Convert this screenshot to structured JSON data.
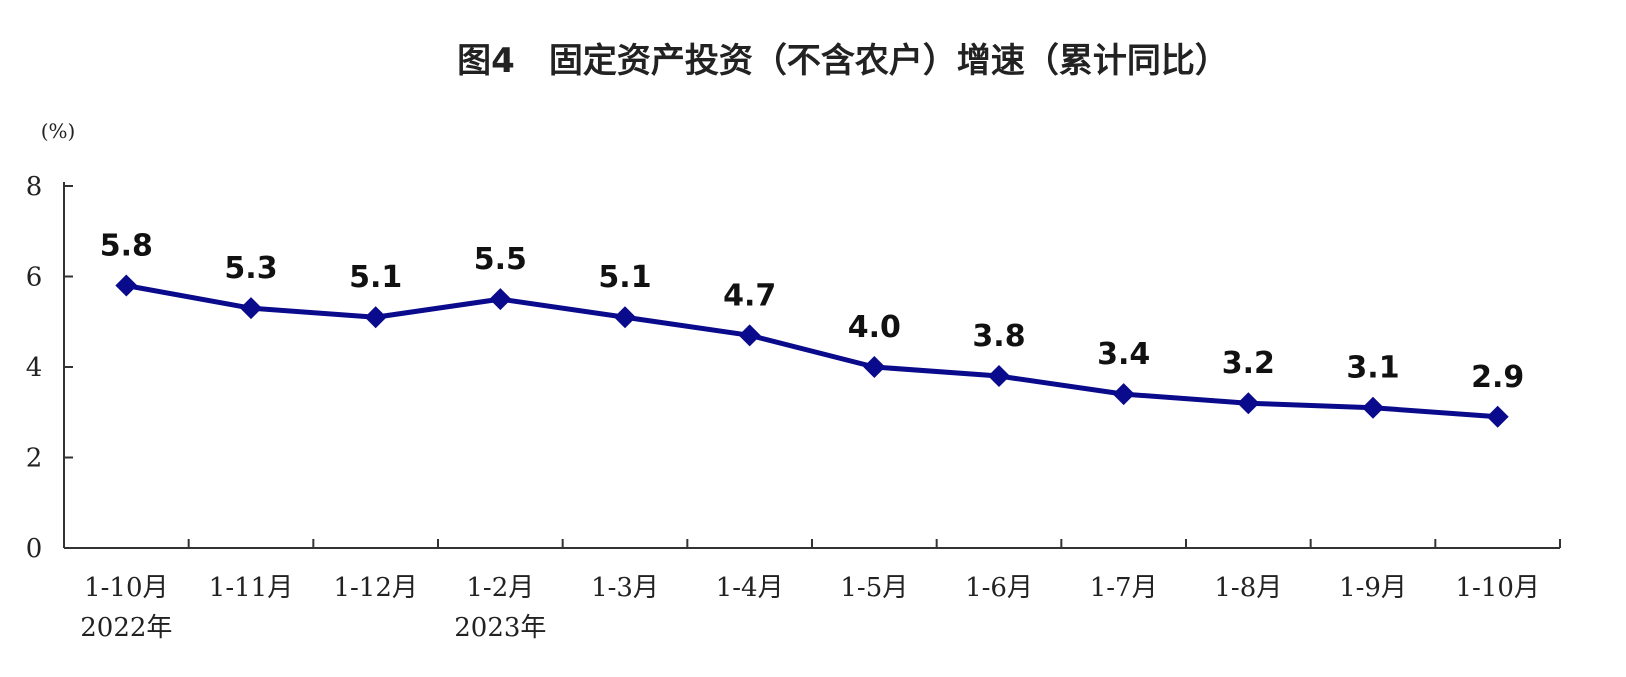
{
  "chart_data": {
    "type": "line",
    "title": "图4　固定资产投资（不含农户）增速（累计同比）",
    "y_unit": "(%)",
    "ylim": [
      0,
      8
    ],
    "yticks": [
      0,
      2,
      4,
      6,
      8
    ],
    "categories": [
      "1-10月",
      "1-11月",
      "1-12月",
      "1-2月",
      "1-3月",
      "1-4月",
      "1-5月",
      "1-6月",
      "1-7月",
      "1-8月",
      "1-9月",
      "1-10月"
    ],
    "year_labels": [
      {
        "category_index": 0,
        "label": "2022年"
      },
      {
        "category_index": 3,
        "label": "2023年"
      }
    ],
    "series": [
      {
        "values": [
          5.8,
          5.3,
          5.1,
          5.5,
          5.1,
          4.7,
          4.0,
          3.8,
          3.4,
          3.2,
          3.1,
          2.9
        ]
      }
    ],
    "data_labels": [
      "5.8",
      "5.3",
      "5.1",
      "5.5",
      "5.1",
      "4.7",
      "4.0",
      "3.8",
      "3.4",
      "3.2",
      "3.1",
      "2.9"
    ],
    "line_color": "#0a0a8c",
    "marker": "diamond",
    "grid": false,
    "legend": "none"
  }
}
